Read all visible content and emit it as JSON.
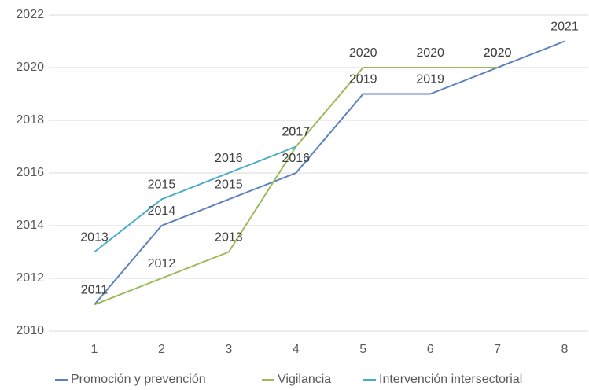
{
  "chart_data": {
    "type": "line",
    "categories": [
      "1",
      "2",
      "3",
      "4",
      "5",
      "6",
      "7",
      "8"
    ],
    "series": [
      {
        "name": "Promoción y prevención",
        "color": "#5b82bd",
        "values": [
          2011,
          2014,
          2015,
          2016,
          2019,
          2019,
          2020,
          2021
        ]
      },
      {
        "name": "Vigilancia",
        "color": "#9bbb59",
        "values": [
          2011,
          2012,
          2013,
          2017,
          2020,
          2020,
          2020,
          null
        ]
      },
      {
        "name": "Intervención intersectorial",
        "color": "#4bacc6",
        "values": [
          2013,
          2015,
          2016,
          2017,
          null,
          null,
          null,
          null
        ]
      }
    ],
    "ylim": [
      2010,
      2022
    ],
    "yticks": [
      2010,
      2012,
      2014,
      2016,
      2018,
      2020,
      2022
    ],
    "grid": true,
    "legend": "bottom"
  }
}
